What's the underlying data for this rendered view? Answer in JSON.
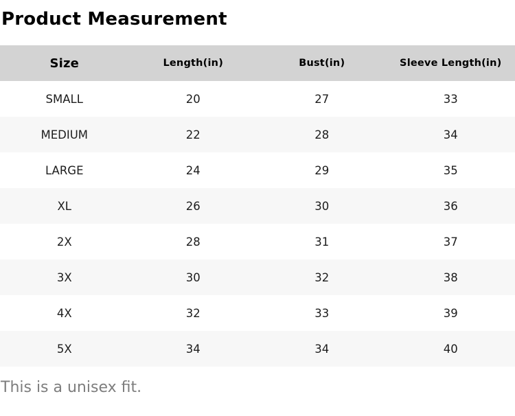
{
  "page": {
    "title": "Product Measurement",
    "footnote": "This is a unisex fit."
  },
  "colors": {
    "header_bg": "#d3d3d3",
    "stripe_bg": "#f7f7f7",
    "header_text": "#000000",
    "body_text": "#1d1d1d",
    "footnote_text": "#7d7d7d"
  },
  "table": {
    "columns": [
      "Size",
      "Length(in)",
      "Bust(in)",
      "Sleeve Length(in)"
    ],
    "rows": [
      [
        "SMALL",
        "20",
        "27",
        "33"
      ],
      [
        "MEDIUM",
        "22",
        "28",
        "34"
      ],
      [
        "LARGE",
        "24",
        "29",
        "35"
      ],
      [
        "XL",
        "26",
        "30",
        "36"
      ],
      [
        "2X",
        "28",
        "31",
        "37"
      ],
      [
        "3X",
        "30",
        "32",
        "38"
      ],
      [
        "4X",
        "32",
        "33",
        "39"
      ],
      [
        "5X",
        "34",
        "34",
        "40"
      ]
    ]
  }
}
